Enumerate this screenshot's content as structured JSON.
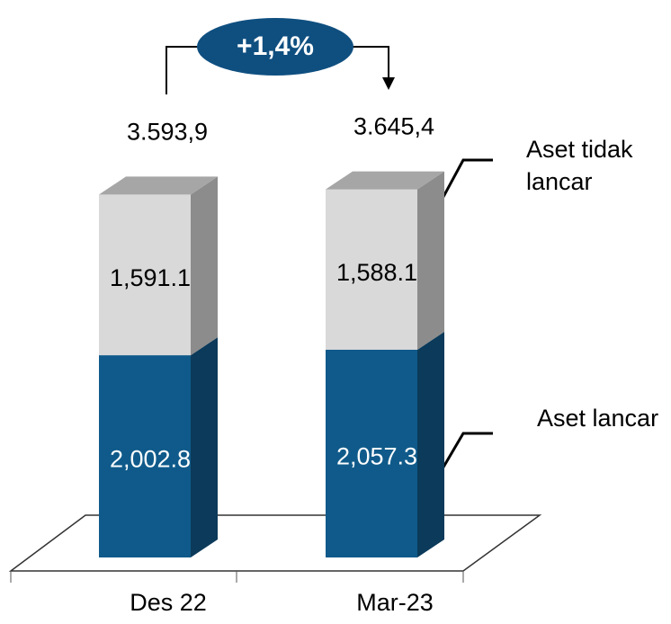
{
  "chart_data": {
    "type": "bar",
    "stacked": true,
    "categories": [
      "Des 22",
      "Mar-23"
    ],
    "series": [
      {
        "name": "Aset lancar",
        "color": "#0f5a8a",
        "values": [
          2002.8,
          2057.3
        ],
        "value_labels": [
          "2,002.8",
          "2,057.3"
        ]
      },
      {
        "name": "Aset tidak lancar",
        "color": "#d9d9d9",
        "values": [
          1591.1,
          1588.1
        ],
        "value_labels": [
          "1,591.1",
          "1,588.1"
        ]
      }
    ],
    "totals": [
      3593.9,
      3645.4
    ],
    "total_labels": [
      "3.593,9",
      "3.645,4"
    ],
    "annotation": "+1,4%"
  }
}
